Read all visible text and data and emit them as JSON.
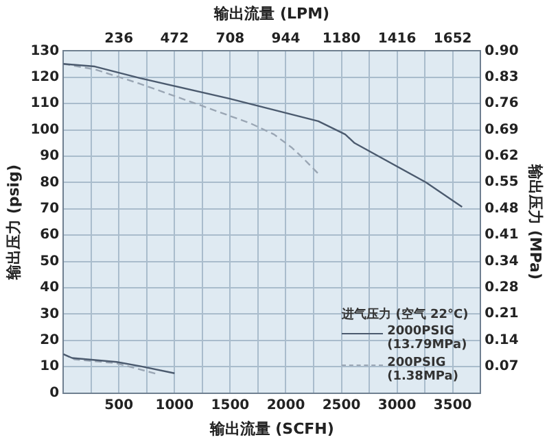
{
  "chart_data": {
    "type": "line",
    "xlabel": "输出流量 (SCFH)",
    "x2label": "输出流量 (LPM)",
    "ylabel": "输出压力 (psig)",
    "y2label": "输出压力 (MPa)",
    "legend_title": "进气压力 (空气 22°C)",
    "xlim": [
      0,
      3750
    ],
    "xticks": [
      {
        "value": 0,
        "label": null
      },
      {
        "value": 250,
        "label": null
      },
      500,
      {
        "value": 750,
        "label": null
      },
      1000,
      {
        "value": 1250,
        "label": null
      },
      1500,
      {
        "value": 1750,
        "label": null
      },
      2000,
      {
        "value": 2250,
        "label": null
      },
      2500,
      {
        "value": 2750,
        "label": null
      },
      3000,
      {
        "value": 3250,
        "label": null
      },
      3500,
      {
        "value": 3750,
        "label": null
      }
    ],
    "x2lim": [
      0,
      1770
    ],
    "x2ticks": [
      236,
      472,
      708,
      944,
      1180,
      1416,
      1652
    ],
    "ylim": [
      0,
      130
    ],
    "yticks": [
      0,
      10,
      20,
      30,
      40,
      50,
      60,
      70,
      80,
      90,
      100,
      110,
      120,
      130
    ],
    "y2lim": [
      0,
      0.896
    ],
    "y2ticks": [
      {
        "value": 0.069,
        "label": "0.07"
      },
      {
        "value": 0.138,
        "label": "0.14"
      },
      {
        "value": 0.207,
        "label": "0.21"
      },
      {
        "value": 0.276,
        "label": "0.28"
      },
      {
        "value": 0.345,
        "label": "0.34"
      },
      {
        "value": 0.414,
        "label": "0.41"
      },
      {
        "value": 0.483,
        "label": "0.48"
      },
      {
        "value": 0.552,
        "label": "0.55"
      },
      {
        "value": 0.621,
        "label": "0.62"
      },
      {
        "value": 0.689,
        "label": "0.69"
      },
      {
        "value": 0.758,
        "label": "0.76"
      },
      {
        "value": 0.827,
        "label": "0.83"
      },
      {
        "value": 0.896,
        "label": "0.90"
      }
    ],
    "grid": true,
    "legend": "bottom right",
    "marker": "none",
    "series": [
      {
        "name": "2000PSIG (13.79MPa)",
        "color": "#4b5a6e",
        "line_style": "solid",
        "x": [
          0,
          284,
          686,
          1492,
          2292,
          2534,
          2618,
          3258,
          3584
        ],
        "values": [
          125.1,
          124.1,
          119.7,
          111.9,
          103.3,
          98.3,
          95.0,
          80.1,
          70.7
        ]
      },
      {
        "name": "200PSIG (1.38MPa)",
        "color": "#9aa6b4",
        "line_style": "dashed",
        "x": [
          0,
          284,
          686,
          1205,
          1688,
          1894,
          2050,
          2135,
          2296
        ],
        "values": [
          125.1,
          123.0,
          117.6,
          109.8,
          102.4,
          98.3,
          93.4,
          90.1,
          83.2
        ]
      },
      {
        "color": "#4b5a6e",
        "line_style": "solid",
        "x": [
          0,
          80,
          480,
          690,
          1000
        ],
        "values": [
          14.8,
          13.3,
          11.8,
          10.2,
          7.5
        ]
      },
      {
        "color": "#9aa6b4",
        "line_style": "dashed",
        "x": [
          0,
          100,
          480,
          830
        ],
        "values": [
          14.8,
          12.8,
          11.3,
          7.4
        ]
      }
    ]
  }
}
